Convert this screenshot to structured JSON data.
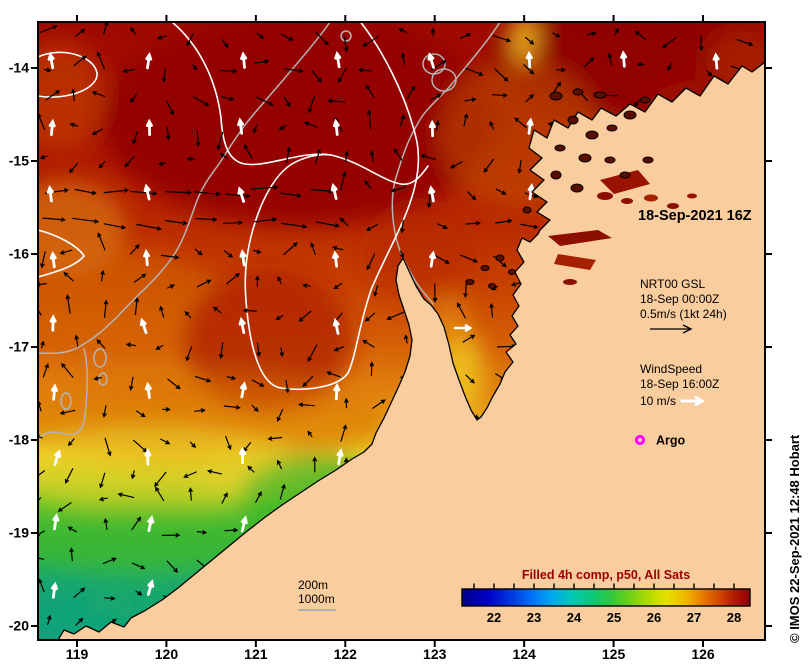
{
  "annotations": {
    "map_datetime": "18-Sep-2021 16Z",
    "copyright_vertical": "© IMOS 22-Sep-2021 12:48 Hobart"
  },
  "gsl_legend": {
    "line1": "NRT00 GSL",
    "line2": "18-Sep 00:00Z",
    "line3": "0.5m/s (1kt 24h)"
  },
  "wind_legend": {
    "line1": "WindSpeed",
    "line2": "18-Sep 16:00Z",
    "line3": "10 m/s"
  },
  "argo_legend": {
    "label": "Argo",
    "marker_color": "#FF00FF"
  },
  "depth_legend": {
    "line1": "200m",
    "line2": "1000m",
    "sample_line_color": "#B0B0B0"
  },
  "colorbar": {
    "title": "Filled 4h comp, p50, All Sats",
    "title_color": "#9B0000",
    "ticks": [
      22,
      23,
      24,
      25,
      26,
      27,
      28
    ],
    "minor_tick_step": 0.5,
    "value_range": [
      21.2,
      28.4
    ],
    "stops": [
      [
        0.0,
        "#00008C"
      ],
      [
        0.09,
        "#0000C8"
      ],
      [
        0.17,
        "#0038E0"
      ],
      [
        0.24,
        "#0070F8"
      ],
      [
        0.31,
        "#00A8F0"
      ],
      [
        0.38,
        "#00C8B4"
      ],
      [
        0.45,
        "#0AC878"
      ],
      [
        0.52,
        "#32C83C"
      ],
      [
        0.59,
        "#78D214"
      ],
      [
        0.66,
        "#BEDC00"
      ],
      [
        0.71,
        "#E6E000"
      ],
      [
        0.78,
        "#F0B400"
      ],
      [
        0.83,
        "#E88000"
      ],
      [
        0.89,
        "#D24B00"
      ],
      [
        0.94,
        "#B41E00"
      ],
      [
        1.0,
        "#8F0000"
      ]
    ]
  },
  "axes": {
    "x_ticks": [
      119,
      120,
      121,
      122,
      123,
      124,
      125,
      126
    ],
    "y_ticks": [
      -14,
      -15,
      -16,
      -17,
      -18,
      -19,
      -20
    ]
  },
  "vectors": {
    "current": {
      "color": "#000000"
    },
    "wind": {
      "color": "#FFFFFF"
    }
  },
  "colors": {
    "land": "#FACD9E",
    "frame": "#000000",
    "contour_white": "#FFFFFF",
    "contour_gray": "#B4B4B4"
  },
  "map_data": {
    "lon_ticks_range": [
      119,
      126
    ],
    "lat_ticks_range": [
      -20,
      -14
    ],
    "sst_colorbar_range_c": [
      21.2,
      28.4
    ]
  }
}
